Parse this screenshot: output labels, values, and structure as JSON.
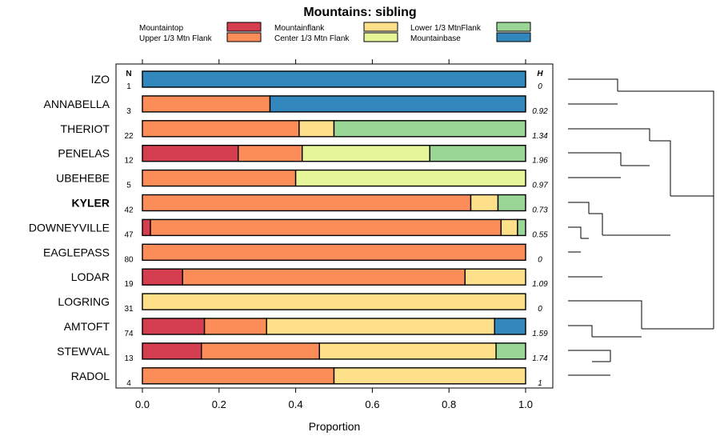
{
  "chart_data": {
    "type": "bar",
    "subtype": "stacked-horizontal-proportion",
    "title": "Mountains: sibling",
    "xlabel": "Proportion",
    "xlim": [
      0,
      1
    ],
    "xticks": [
      "0.0",
      "0.2",
      "0.4",
      "0.6",
      "0.8",
      "1.0"
    ],
    "xtick_values": [
      0,
      0.2,
      0.4,
      0.6,
      0.8,
      1.0
    ],
    "n_header": "N",
    "h_header": "H",
    "legend": [
      {
        "name": "Mountaintop",
        "color": "#d53e4f"
      },
      {
        "name": "Upper 1/3 Mtn Flank",
        "color": "#fc8d59"
      },
      {
        "name": "Mountainflank",
        "color": "#fee08b"
      },
      {
        "name": "Center 1/3 Mtn Flank",
        "color": "#e6f598"
      },
      {
        "name": "Lower 1/3 MtnFlank",
        "color": "#99d594"
      },
      {
        "name": "Mountainbase",
        "color": "#3288bd"
      }
    ],
    "rows": [
      {
        "label": "IZO",
        "n": "1",
        "h": "0",
        "bold": false,
        "values": [
          0,
          0,
          0,
          0,
          0,
          1.0
        ]
      },
      {
        "label": "ANNABELLA",
        "n": "3",
        "h": "0.92",
        "bold": false,
        "values": [
          0,
          0.333,
          0,
          0,
          0,
          0.667
        ]
      },
      {
        "label": "THERIOT",
        "n": "22",
        "h": "1.34",
        "bold": false,
        "values": [
          0,
          0.409,
          0.091,
          0,
          0.5,
          0
        ]
      },
      {
        "label": "PENELAS",
        "n": "12",
        "h": "1.96",
        "bold": false,
        "values": [
          0.25,
          0.167,
          0,
          0.333,
          0.25,
          0
        ]
      },
      {
        "label": "UBEHEBE",
        "n": "5",
        "h": "0.97",
        "bold": false,
        "values": [
          0,
          0.4,
          0,
          0.6,
          0,
          0
        ]
      },
      {
        "label": "KYLER",
        "n": "42",
        "h": "0.73",
        "bold": true,
        "values": [
          0,
          0.857,
          0.071,
          0,
          0.072,
          0
        ]
      },
      {
        "label": "DOWNEYVILLE",
        "n": "47",
        "h": "0.55",
        "bold": false,
        "values": [
          0.021,
          0.915,
          0.043,
          0,
          0.021,
          0
        ]
      },
      {
        "label": "EAGLEPASS",
        "n": "80",
        "h": "0",
        "bold": false,
        "values": [
          0,
          1.0,
          0,
          0,
          0,
          0
        ]
      },
      {
        "label": "LODAR",
        "n": "19",
        "h": "1.09",
        "bold": false,
        "values": [
          0.105,
          0.737,
          0.158,
          0,
          0,
          0
        ]
      },
      {
        "label": "LOGRING",
        "n": "31",
        "h": "0",
        "bold": false,
        "values": [
          0,
          0,
          1.0,
          0,
          0,
          0
        ]
      },
      {
        "label": "AMTOFT",
        "n": "74",
        "h": "1.59",
        "bold": false,
        "values": [
          0.162,
          0.162,
          0.595,
          0,
          0,
          0.081
        ]
      },
      {
        "label": "STEWVAL",
        "n": "13",
        "h": "1.74",
        "bold": false,
        "values": [
          0.154,
          0.308,
          0.461,
          0,
          0.077,
          0
        ]
      },
      {
        "label": "RADOL",
        "n": "4",
        "h": "1",
        "bold": false,
        "values": [
          0,
          0.5,
          0.5,
          0,
          0,
          0
        ]
      }
    ],
    "dendrogram": "hierarchical clustering of rows (shown right of plot)"
  }
}
